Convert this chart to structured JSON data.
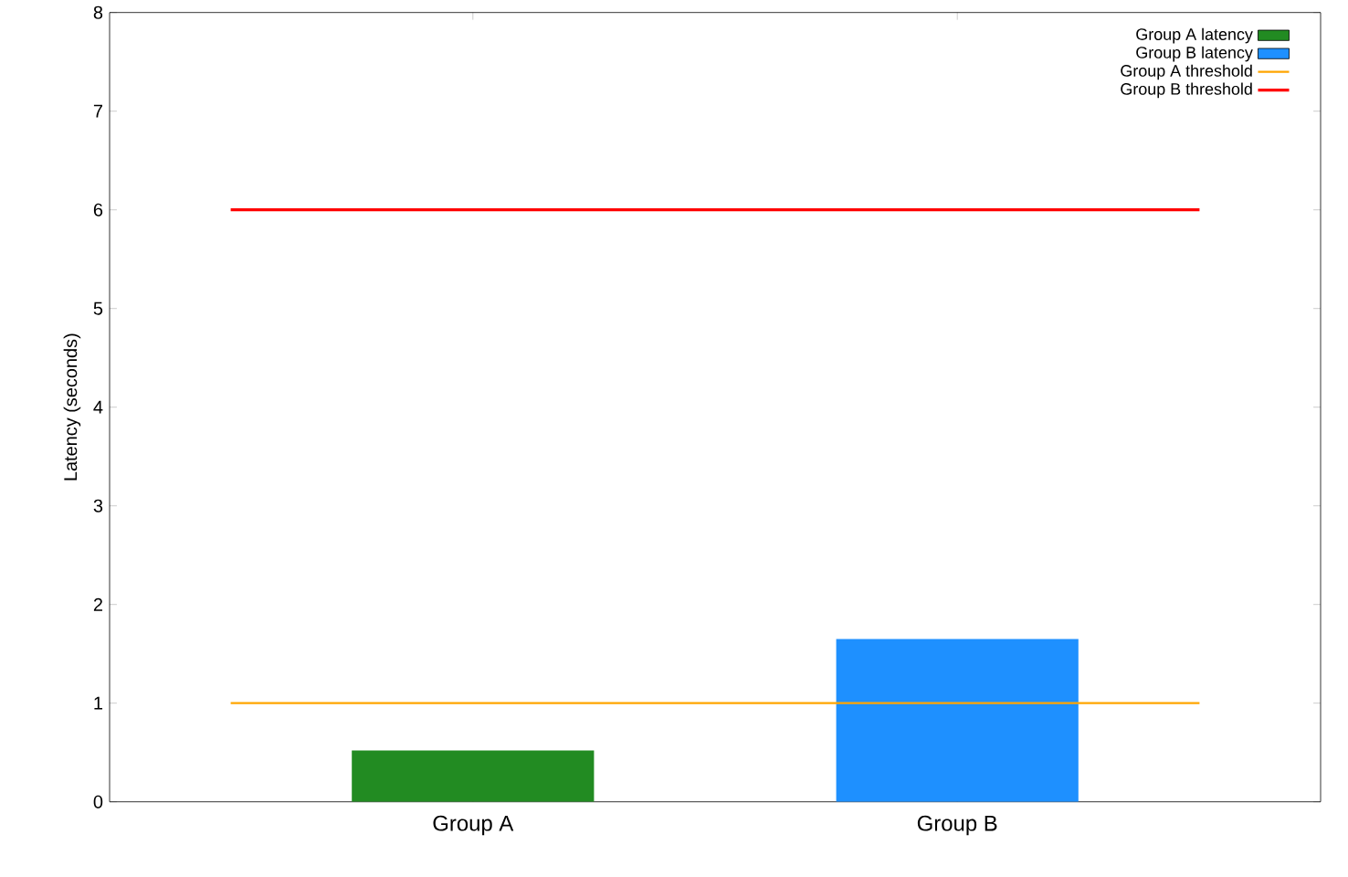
{
  "chart_data": {
    "type": "bar",
    "ylabel": "Latency (seconds)",
    "categories": [
      "Group A",
      "Group B"
    ],
    "series": [
      {
        "name": "Group A latency",
        "color": "#228b22",
        "values": [
          0.52,
          null
        ]
      },
      {
        "name": "Group B latency",
        "color": "#1e90ff",
        "values": [
          null,
          1.65
        ]
      }
    ],
    "ref_lines": [
      {
        "axis": "y",
        "value": 1,
        "label": "Group A threshold",
        "color": "#ffa500"
      },
      {
        "axis": "y",
        "value": 6,
        "label": "Group B threshold",
        "color": "#ff0000"
      }
    ],
    "ylim": [
      0,
      8
    ],
    "yticks": [
      0,
      1,
      2,
      3,
      4,
      5,
      6,
      7,
      8
    ],
    "legend": "top right"
  }
}
